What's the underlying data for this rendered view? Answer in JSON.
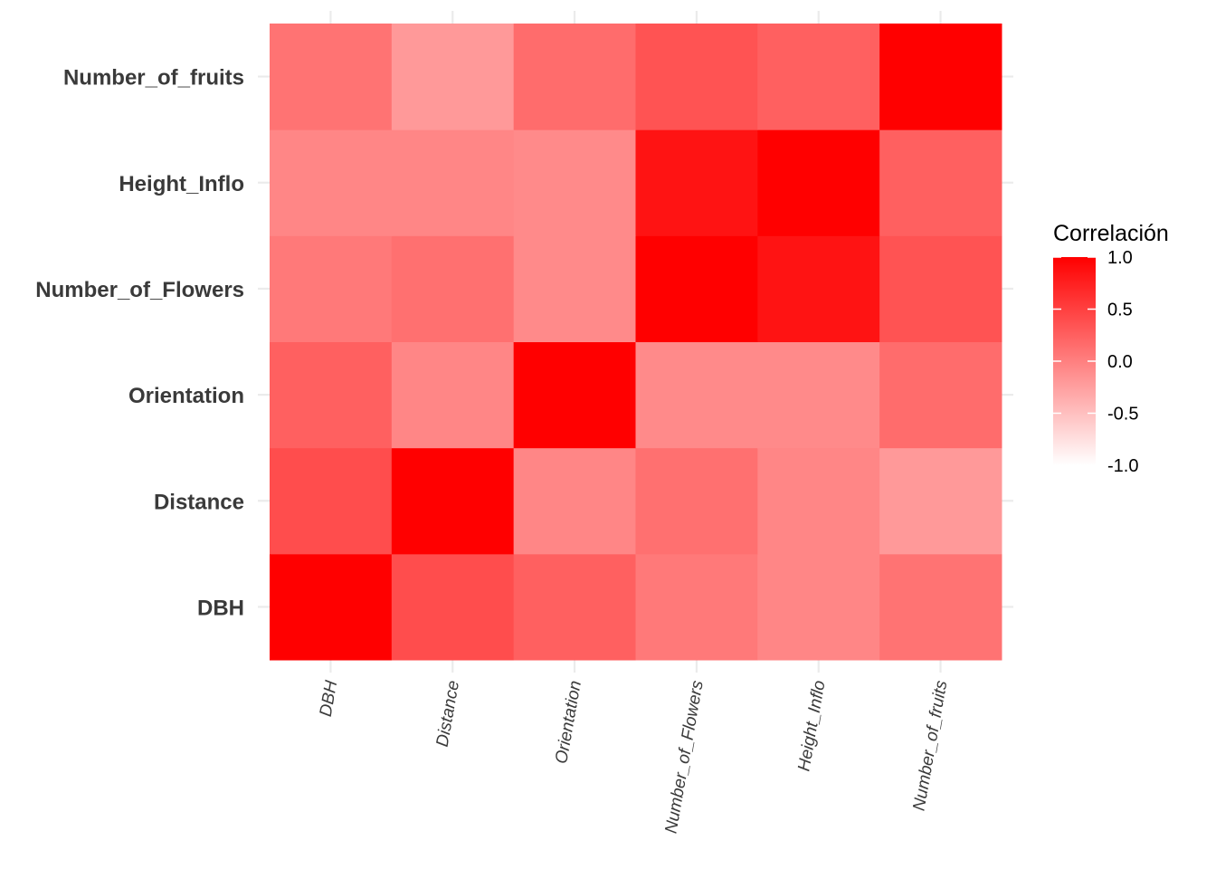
{
  "chart_data": {
    "type": "heatmap",
    "title": "",
    "xlabel": "",
    "ylabel": "",
    "x_categories": [
      "DBH",
      "Distance",
      "Orientation",
      "Number_of_Flowers",
      "Height_Inflo",
      "Number_of_fruits"
    ],
    "y_categories": [
      "DBH",
      "Distance",
      "Orientation",
      "Number_of_Flowers",
      "Height_Inflo",
      "Number_of_fruits"
    ],
    "values": [
      [
        1.0,
        0.4,
        0.25,
        0.05,
        -0.05,
        0.1
      ],
      [
        0.4,
        1.0,
        -0.05,
        0.12,
        -0.05,
        -0.2
      ],
      [
        0.25,
        -0.05,
        1.0,
        -0.08,
        -0.08,
        0.15
      ],
      [
        0.05,
        0.12,
        -0.08,
        1.0,
        0.85,
        0.35
      ],
      [
        -0.05,
        -0.05,
        -0.08,
        0.85,
        1.0,
        0.25
      ],
      [
        0.1,
        -0.2,
        0.15,
        0.35,
        0.25,
        1.0
      ]
    ],
    "legend": {
      "title": "Correlación",
      "position": "right",
      "ticks": [
        1.0,
        0.5,
        0.0,
        -0.5,
        -1.0
      ],
      "tick_labels": [
        "1.0",
        "0.5",
        "0.0",
        "-0.5",
        "-1.0"
      ],
      "range": [
        -1.0,
        1.0
      ]
    },
    "colors": {
      "low": "#ffffff",
      "high": "#ff0000",
      "grid": "#ebebeb"
    },
    "grid": true
  }
}
